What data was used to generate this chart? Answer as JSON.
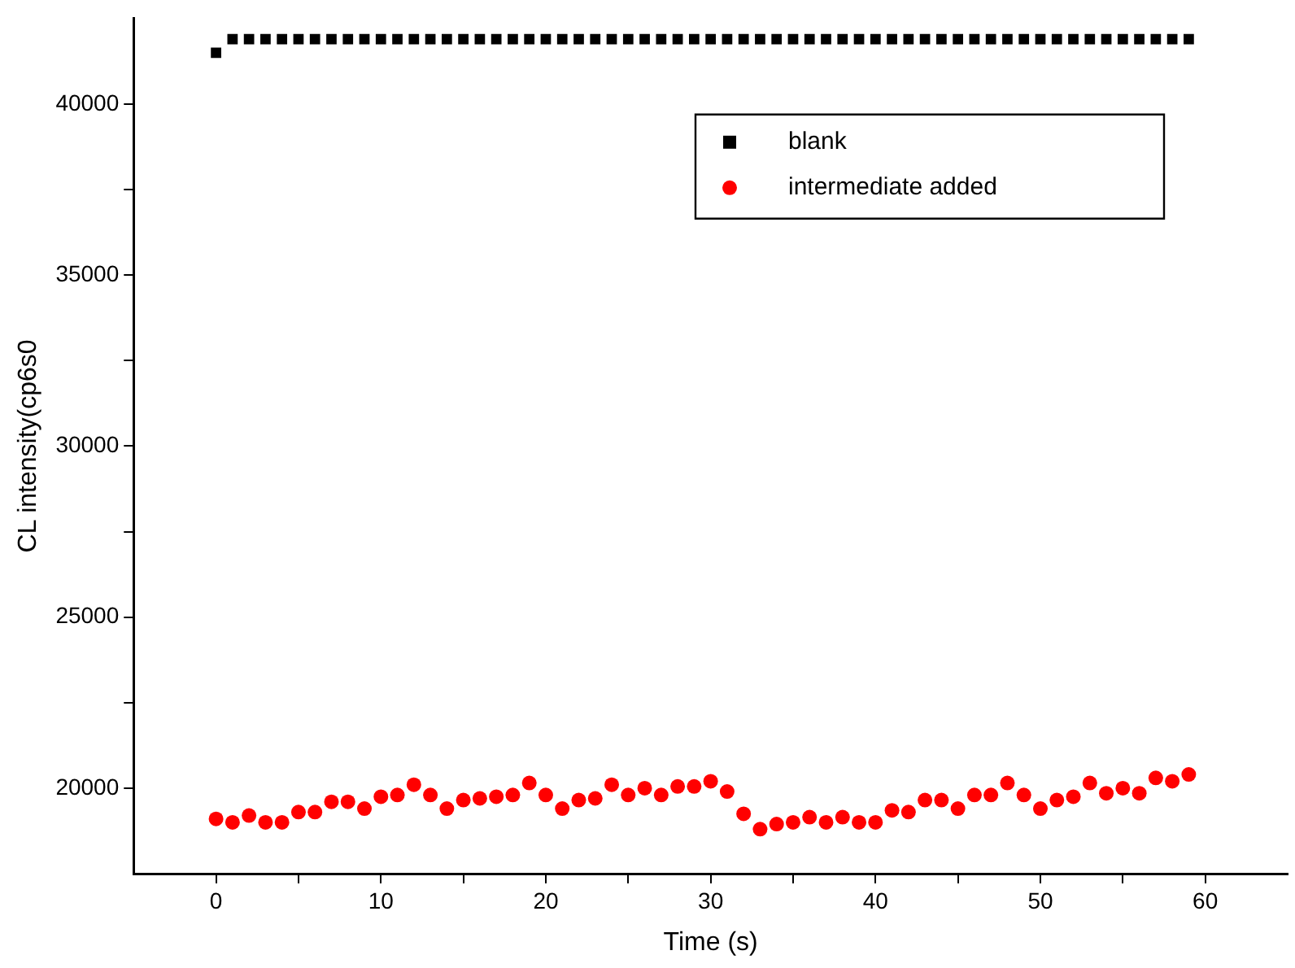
{
  "chart_data": {
    "type": "scatter",
    "xlabel": "Time (s)",
    "ylabel": "CL intensity(cp6s0",
    "x": [
      0,
      1,
      2,
      3,
      4,
      5,
      6,
      7,
      8,
      9,
      10,
      11,
      12,
      13,
      14,
      15,
      16,
      17,
      18,
      19,
      20,
      21,
      22,
      23,
      24,
      25,
      26,
      27,
      28,
      29,
      30,
      31,
      32,
      33,
      34,
      35,
      36,
      37,
      38,
      39,
      40,
      41,
      42,
      43,
      44,
      45,
      46,
      47,
      48,
      49,
      50,
      51,
      52,
      53,
      54,
      55,
      56,
      57,
      58,
      59
    ],
    "series": [
      {
        "name": "blank",
        "color": "#000000",
        "marker": "square",
        "values": [
          41500,
          41900,
          41900,
          41900,
          41900,
          41900,
          41900,
          41900,
          41900,
          41900,
          41900,
          41900,
          41900,
          41900,
          41900,
          41900,
          41900,
          41900,
          41900,
          41900,
          41900,
          41900,
          41900,
          41900,
          41900,
          41900,
          41900,
          41900,
          41900,
          41900,
          41900,
          41900,
          41900,
          41900,
          41900,
          41900,
          41900,
          41900,
          41900,
          41900,
          41900,
          41900,
          41900,
          41900,
          41900,
          41900,
          41900,
          41900,
          41900,
          41900,
          41900,
          41900,
          41900,
          41900,
          41900,
          41900,
          41900,
          41900,
          41900,
          41900
        ]
      },
      {
        "name": "intermediate added",
        "color": "#ff0000",
        "marker": "circle",
        "values": [
          19100,
          19000,
          19200,
          19000,
          19000,
          19300,
          19300,
          19600,
          19600,
          19400,
          19750,
          19800,
          20100,
          19800,
          19400,
          19650,
          19700,
          19750,
          19800,
          20150,
          19800,
          19400,
          19650,
          19700,
          20100,
          19800,
          20000,
          19800,
          20050,
          20050,
          20200,
          19900,
          19250,
          18800,
          18950,
          19000,
          19150,
          19000,
          19150,
          19000,
          19000,
          19350,
          19300,
          19650,
          19650,
          19400,
          19800,
          19800,
          20150,
          19800,
          19400,
          19650,
          19750,
          20150,
          19850,
          20000,
          19850,
          20300,
          20200,
          20400
        ]
      }
    ],
    "xlim": [
      -5,
      65
    ],
    "xticks": [
      0,
      {
        "value": 5,
        "label": null
      },
      10,
      {
        "value": 15,
        "label": null
      },
      20,
      {
        "value": 25,
        "label": null
      },
      30,
      {
        "value": 35,
        "label": null
      },
      40,
      {
        "value": 45,
        "label": null
      },
      50,
      {
        "value": 55,
        "label": null
      },
      60
    ],
    "ylim": [
      17500,
      42500
    ],
    "yticks": [
      20000,
      {
        "value": 22500,
        "label": null
      },
      25000,
      {
        "value": 27500,
        "label": null
      },
      30000,
      {
        "value": 32500,
        "label": null
      },
      35000,
      {
        "value": 37500,
        "label": null
      },
      40000
    ],
    "grid": false,
    "legend": "top right"
  }
}
